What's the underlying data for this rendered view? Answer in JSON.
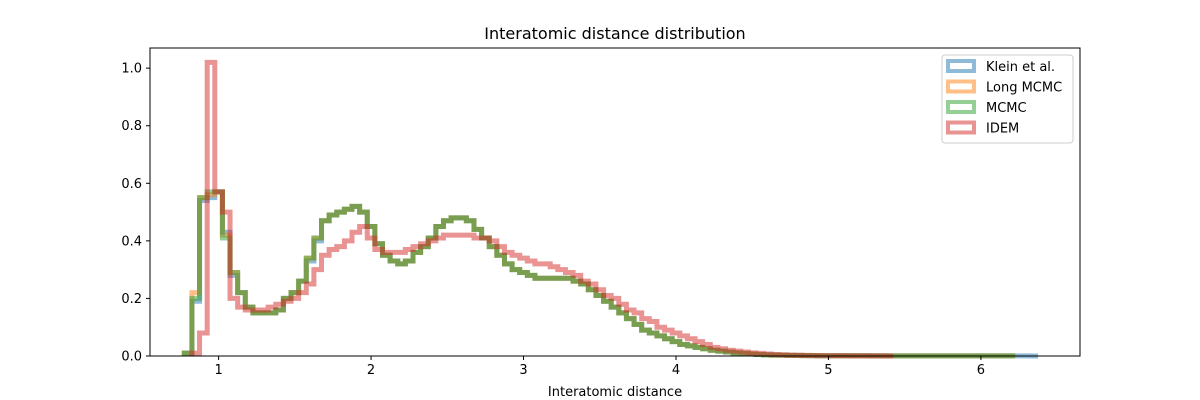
{
  "chart_data": {
    "type": "step-histogram",
    "title": "Interatomic distance distribution",
    "xlabel": "Interatomic distance",
    "ylabel": "",
    "xlim": [
      0.55,
      6.65
    ],
    "ylim": [
      0.0,
      1.07
    ],
    "xticks": [
      1,
      2,
      3,
      4,
      5,
      6
    ],
    "yticks": [
      0.0,
      0.2,
      0.4,
      0.6,
      0.8,
      1.0
    ],
    "grid": false,
    "legend_position": "top-right",
    "bin_width": 0.05,
    "series": [
      {
        "name": "Klein et al.",
        "color": "#1f77b4",
        "x": [
          0.8,
          0.85,
          0.9,
          0.95,
          1.0,
          1.05,
          1.1,
          1.15,
          1.2,
          1.25,
          1.3,
          1.35,
          1.4,
          1.45,
          1.5,
          1.55,
          1.6,
          1.65,
          1.7,
          1.75,
          1.8,
          1.85,
          1.9,
          1.95,
          2.0,
          2.05,
          2.1,
          2.15,
          2.2,
          2.25,
          2.3,
          2.35,
          2.4,
          2.45,
          2.5,
          2.55,
          2.6,
          2.65,
          2.7,
          2.75,
          2.8,
          2.85,
          2.9,
          2.95,
          3.0,
          3.05,
          3.1,
          3.15,
          3.2,
          3.25,
          3.3,
          3.35,
          3.4,
          3.45,
          3.5,
          3.55,
          3.6,
          3.65,
          3.7,
          3.75,
          3.8,
          3.85,
          3.9,
          3.95,
          4.0,
          4.05,
          4.1,
          4.15,
          4.2,
          4.25,
          4.3,
          4.35,
          4.4,
          4.45,
          4.5,
          4.55,
          4.6,
          4.65,
          4.7,
          4.75,
          4.8,
          4.85,
          4.9,
          4.95,
          5.0,
          5.05,
          5.1,
          5.15,
          5.2,
          5.25,
          5.3,
          5.35,
          5.4,
          5.45,
          5.5,
          5.55,
          5.6,
          5.65,
          5.7,
          5.75,
          5.8,
          5.85,
          5.9,
          5.95,
          6.0,
          6.05,
          6.1,
          6.15,
          6.2,
          6.25,
          6.3,
          6.35
        ],
        "y": [
          0.01,
          0.19,
          0.54,
          0.55,
          0.57,
          0.43,
          0.28,
          0.22,
          0.17,
          0.15,
          0.15,
          0.15,
          0.16,
          0.2,
          0.22,
          0.26,
          0.33,
          0.4,
          0.47,
          0.49,
          0.5,
          0.51,
          0.52,
          0.5,
          0.45,
          0.39,
          0.35,
          0.33,
          0.32,
          0.33,
          0.36,
          0.38,
          0.41,
          0.45,
          0.47,
          0.48,
          0.48,
          0.47,
          0.44,
          0.41,
          0.38,
          0.35,
          0.32,
          0.3,
          0.29,
          0.28,
          0.27,
          0.27,
          0.27,
          0.27,
          0.27,
          0.26,
          0.25,
          0.23,
          0.21,
          0.19,
          0.17,
          0.15,
          0.13,
          0.11,
          0.09,
          0.08,
          0.07,
          0.06,
          0.05,
          0.04,
          0.035,
          0.03,
          0.025,
          0.02,
          0.017,
          0.014,
          0.011,
          0.009,
          0.007,
          0.005,
          0.004,
          0.003,
          0.003,
          0.002,
          0.002,
          0.0015,
          0.0015,
          0.001,
          0.001,
          0.001,
          0.001,
          0.001,
          0.001,
          0.001,
          0.0005,
          0.0005,
          0.0005,
          0.0005,
          0.0005,
          0.0005,
          0.0005,
          0.0005,
          0.0005,
          0.0005,
          0.0005,
          0.0005,
          0.0005,
          0.0005,
          0.0005,
          0.0005,
          0.0005,
          0.0005,
          0.0005,
          0.0005,
          0.0005,
          0.0
        ]
      },
      {
        "name": "Long MCMC",
        "color": "#ff7f0e",
        "x": [
          0.8,
          0.85,
          0.9,
          0.95,
          1.0,
          1.05,
          1.1,
          1.15,
          1.2,
          1.25,
          1.3,
          1.35,
          1.4,
          1.45,
          1.5,
          1.55,
          1.6,
          1.65,
          1.7,
          1.75,
          1.8,
          1.85,
          1.9,
          1.95,
          2.0,
          2.05,
          2.1,
          2.15,
          2.2,
          2.25,
          2.3,
          2.35,
          2.4,
          2.45,
          2.5,
          2.55,
          2.6,
          2.65,
          2.7,
          2.75,
          2.8,
          2.85,
          2.9,
          2.95,
          3.0,
          3.05,
          3.1,
          3.15,
          3.2,
          3.25,
          3.3,
          3.35,
          3.4,
          3.45,
          3.5,
          3.55,
          3.6,
          3.65,
          3.7,
          3.75,
          3.8,
          3.85,
          3.9,
          3.95,
          4.0,
          4.05,
          4.1,
          4.15,
          4.2,
          4.25,
          4.3,
          4.35,
          4.4,
          4.45,
          4.5,
          4.55,
          4.6,
          4.65,
          4.7,
          4.75,
          4.8,
          4.85,
          4.9,
          4.95,
          5.0,
          5.05,
          5.1,
          5.15,
          5.2,
          5.25,
          5.3,
          5.35,
          5.4,
          5.45,
          5.5,
          5.55,
          5.6,
          5.65,
          5.7,
          5.75,
          5.8,
          5.85,
          5.9,
          5.95,
          6.0,
          6.05,
          6.1,
          6.15,
          6.2,
          6.25
        ],
        "y": [
          0.01,
          0.22,
          0.55,
          0.56,
          0.57,
          0.42,
          0.29,
          0.22,
          0.17,
          0.15,
          0.15,
          0.15,
          0.16,
          0.2,
          0.22,
          0.26,
          0.34,
          0.41,
          0.47,
          0.49,
          0.5,
          0.51,
          0.52,
          0.5,
          0.45,
          0.39,
          0.35,
          0.33,
          0.32,
          0.33,
          0.36,
          0.38,
          0.41,
          0.45,
          0.47,
          0.48,
          0.48,
          0.47,
          0.44,
          0.41,
          0.38,
          0.35,
          0.32,
          0.3,
          0.29,
          0.28,
          0.27,
          0.27,
          0.27,
          0.27,
          0.27,
          0.26,
          0.25,
          0.23,
          0.21,
          0.19,
          0.17,
          0.15,
          0.13,
          0.11,
          0.09,
          0.08,
          0.07,
          0.06,
          0.05,
          0.04,
          0.035,
          0.03,
          0.025,
          0.02,
          0.017,
          0.014,
          0.011,
          0.009,
          0.007,
          0.005,
          0.004,
          0.003,
          0.003,
          0.002,
          0.002,
          0.0015,
          0.0015,
          0.001,
          0.001,
          0.001,
          0.001,
          0.001,
          0.001,
          0.001,
          0.0005,
          0.0005,
          0.0005,
          0.0005,
          0.0005,
          0.0005,
          0.0005,
          0.0005,
          0.0005,
          0.0005,
          0.0005,
          0.0005,
          0.0005,
          0.0005,
          0.0005,
          0.0005,
          0.0005,
          0.0005,
          0.0005
        ]
      },
      {
        "name": "MCMC",
        "color": "#2ca02c",
        "x": [
          0.8,
          0.85,
          0.9,
          0.95,
          1.0,
          1.05,
          1.1,
          1.15,
          1.2,
          1.25,
          1.3,
          1.35,
          1.4,
          1.45,
          1.5,
          1.55,
          1.6,
          1.65,
          1.7,
          1.75,
          1.8,
          1.85,
          1.9,
          1.95,
          2.0,
          2.05,
          2.1,
          2.15,
          2.2,
          2.25,
          2.3,
          2.35,
          2.4,
          2.45,
          2.5,
          2.55,
          2.6,
          2.65,
          2.7,
          2.75,
          2.8,
          2.85,
          2.9,
          2.95,
          3.0,
          3.05,
          3.1,
          3.15,
          3.2,
          3.25,
          3.3,
          3.35,
          3.4,
          3.45,
          3.5,
          3.55,
          3.6,
          3.65,
          3.7,
          3.75,
          3.8,
          3.85,
          3.9,
          3.95,
          4.0,
          4.05,
          4.1,
          4.15,
          4.2,
          4.25,
          4.3,
          4.35,
          4.4,
          4.45,
          4.5,
          4.55,
          4.6,
          4.65,
          4.7,
          4.75,
          4.8,
          4.85,
          4.9,
          4.95,
          5.0,
          5.05,
          5.1,
          5.15,
          5.2,
          5.25,
          5.3,
          5.35,
          5.4,
          5.45,
          5.5,
          5.55,
          5.6,
          5.65,
          5.7,
          5.75,
          5.8,
          5.85,
          5.9,
          5.95,
          6.0,
          6.05,
          6.1,
          6.15,
          6.2,
          6.25
        ],
        "y": [
          0.01,
          0.2,
          0.55,
          0.57,
          0.57,
          0.41,
          0.29,
          0.22,
          0.17,
          0.15,
          0.15,
          0.15,
          0.16,
          0.2,
          0.22,
          0.26,
          0.34,
          0.41,
          0.47,
          0.49,
          0.5,
          0.51,
          0.52,
          0.5,
          0.45,
          0.39,
          0.35,
          0.33,
          0.32,
          0.33,
          0.36,
          0.38,
          0.41,
          0.45,
          0.47,
          0.48,
          0.48,
          0.47,
          0.44,
          0.41,
          0.38,
          0.35,
          0.32,
          0.3,
          0.29,
          0.28,
          0.27,
          0.27,
          0.27,
          0.27,
          0.27,
          0.26,
          0.25,
          0.23,
          0.21,
          0.19,
          0.17,
          0.15,
          0.13,
          0.11,
          0.09,
          0.08,
          0.07,
          0.06,
          0.05,
          0.04,
          0.035,
          0.03,
          0.025,
          0.02,
          0.017,
          0.014,
          0.011,
          0.009,
          0.007,
          0.005,
          0.004,
          0.003,
          0.003,
          0.002,
          0.002,
          0.0015,
          0.0015,
          0.001,
          0.001,
          0.001,
          0.001,
          0.001,
          0.001,
          0.001,
          0.0005,
          0.0005,
          0.0005,
          0.0005,
          0.0005,
          0.0005,
          0.0005,
          0.0005,
          0.0005,
          0.0005,
          0.0005,
          0.0005,
          0.0005,
          0.0005,
          0.0005,
          0.0005,
          0.0005,
          0.0005,
          0.0005
        ]
      },
      {
        "name": "IDEM",
        "color": "#d62728",
        "x": [
          0.85,
          0.9,
          0.95,
          1.0,
          1.05,
          1.1,
          1.15,
          1.2,
          1.25,
          1.3,
          1.35,
          1.4,
          1.45,
          1.5,
          1.55,
          1.6,
          1.65,
          1.7,
          1.75,
          1.8,
          1.85,
          1.9,
          1.95,
          2.0,
          2.05,
          2.1,
          2.15,
          2.2,
          2.25,
          2.3,
          2.35,
          2.4,
          2.45,
          2.5,
          2.55,
          2.6,
          2.65,
          2.7,
          2.75,
          2.8,
          2.85,
          2.9,
          2.95,
          3.0,
          3.05,
          3.1,
          3.15,
          3.2,
          3.25,
          3.3,
          3.35,
          3.4,
          3.45,
          3.5,
          3.55,
          3.6,
          3.65,
          3.7,
          3.75,
          3.8,
          3.85,
          3.9,
          3.95,
          4.0,
          4.05,
          4.1,
          4.15,
          4.2,
          4.25,
          4.3,
          4.35,
          4.4,
          4.45,
          4.5,
          4.55,
          4.6,
          4.65,
          4.7,
          4.75,
          4.8,
          4.85,
          4.9,
          4.95,
          5.0,
          5.05,
          5.1,
          5.15,
          5.2,
          5.25,
          5.3,
          5.35,
          5.4
        ],
        "y": [
          0.01,
          0.08,
          1.02,
          0.57,
          0.5,
          0.2,
          0.17,
          0.16,
          0.16,
          0.16,
          0.17,
          0.18,
          0.19,
          0.2,
          0.22,
          0.25,
          0.3,
          0.35,
          0.37,
          0.38,
          0.4,
          0.43,
          0.45,
          0.41,
          0.37,
          0.36,
          0.36,
          0.36,
          0.37,
          0.38,
          0.39,
          0.4,
          0.41,
          0.42,
          0.42,
          0.42,
          0.42,
          0.41,
          0.41,
          0.4,
          0.38,
          0.36,
          0.35,
          0.34,
          0.33,
          0.32,
          0.32,
          0.31,
          0.3,
          0.29,
          0.28,
          0.26,
          0.25,
          0.23,
          0.21,
          0.2,
          0.18,
          0.16,
          0.15,
          0.13,
          0.12,
          0.1,
          0.09,
          0.08,
          0.07,
          0.06,
          0.05,
          0.04,
          0.03,
          0.025,
          0.02,
          0.017,
          0.014,
          0.011,
          0.009,
          0.007,
          0.005,
          0.004,
          0.003,
          0.002,
          0.002,
          0.0015,
          0.001,
          0.001,
          0.001,
          0.001,
          0.0005,
          0.0005,
          0.0005,
          0.0005,
          0.0005,
          0.0
        ]
      }
    ]
  }
}
